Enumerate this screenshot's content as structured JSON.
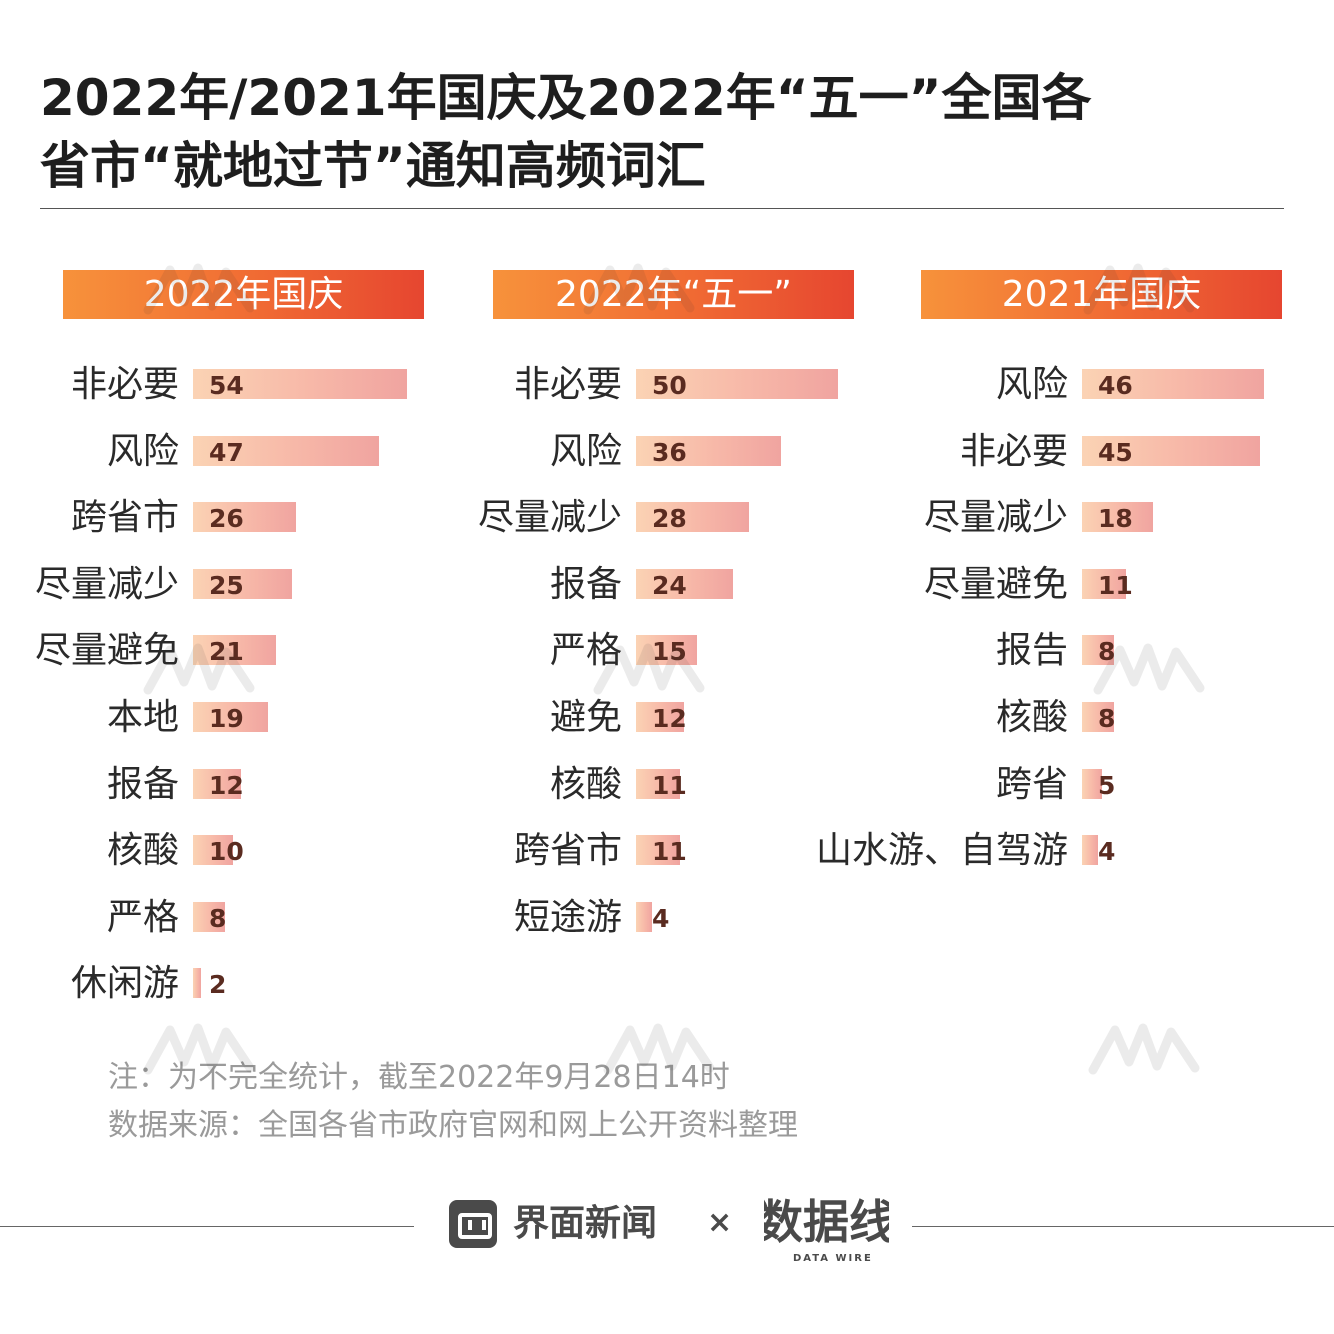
{
  "title_lines": [
    "2022年/2021年国庆及2022年“五一”全国各",
    "省市“就地过节”通知高频词汇"
  ],
  "chart_data": [
    {
      "type": "bar",
      "orientation": "horizontal",
      "title": "2022年国庆",
      "categories": [
        "非必要",
        "风险",
        "跨省市",
        "尽量减少",
        "尽量避免",
        "本地",
        "报备",
        "核酸",
        "严格",
        "休闲游"
      ],
      "values": [
        54,
        47,
        26,
        25,
        21,
        19,
        12,
        10,
        8,
        2
      ]
    },
    {
      "type": "bar",
      "orientation": "horizontal",
      "title": "2022年“五一”",
      "categories": [
        "非必要",
        "风险",
        "尽量减少",
        "报备",
        "严格",
        "避免",
        "核酸",
        "跨省市",
        "短途游"
      ],
      "values": [
        50,
        36,
        28,
        24,
        15,
        12,
        11,
        11,
        4
      ]
    },
    {
      "type": "bar",
      "orientation": "horizontal",
      "title": "2021年国庆",
      "categories": [
        "风险",
        "非必要",
        "尽量减少",
        "尽量避免",
        "报告",
        "核酸",
        "跨省",
        "山水游、自驾游"
      ],
      "values": [
        46,
        45,
        18,
        11,
        8,
        8,
        5,
        4
      ]
    }
  ],
  "notes": [
    "注：为不完全统计，截至2022年9月28日14时",
    "数据来源：全国各省市政府官网和网上公开资料整理"
  ],
  "footer": {
    "brand": "界面新闻",
    "times": "×",
    "partner": "数据线",
    "partner_sub": "DATA WIRE"
  },
  "colors": {
    "header_start": "#f7923b",
    "header_end": "#e64630",
    "bar_start": "#fbd3b4",
    "bar_end": "#f0a4a0",
    "value_text": "#5a2b20"
  }
}
